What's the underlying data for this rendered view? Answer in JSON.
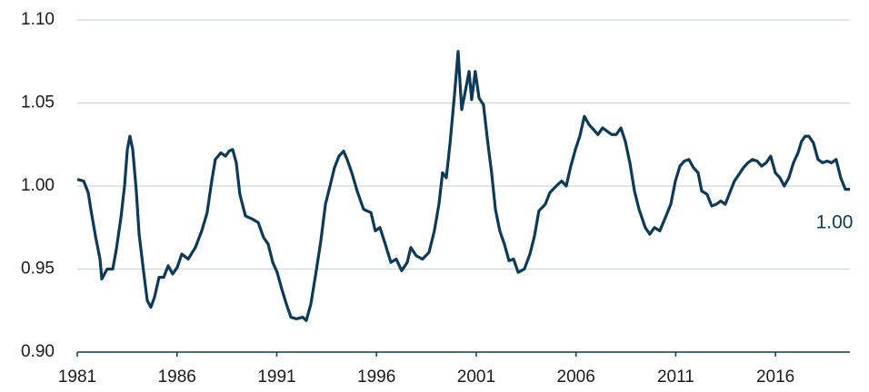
{
  "chart_data": {
    "type": "line",
    "x": [
      1981.0,
      1981.32,
      1981.55,
      1981.68,
      1981.91,
      1982.14,
      1982.23,
      1982.5,
      1982.78,
      1982.96,
      1983.19,
      1983.37,
      1983.51,
      1983.64,
      1983.78,
      1983.96,
      1984.1,
      1984.33,
      1984.51,
      1984.69,
      1984.87,
      1985.1,
      1985.33,
      1985.56,
      1985.78,
      1986.01,
      1986.24,
      1986.56,
      1986.92,
      1987.24,
      1987.51,
      1987.74,
      1987.92,
      1988.2,
      1988.43,
      1988.61,
      1988.79,
      1988.97,
      1989.15,
      1989.43,
      1989.79,
      1990.07,
      1990.34,
      1990.57,
      1990.8,
      1991.02,
      1991.25,
      1991.48,
      1991.71,
      1991.98,
      1992.3,
      1992.48,
      1992.71,
      1992.98,
      1993.21,
      1993.44,
      1993.67,
      1993.89,
      1994.12,
      1994.35,
      1994.53,
      1994.76,
      1995.03,
      1995.35,
      1995.72,
      1995.94,
      1996.17,
      1996.44,
      1996.72,
      1996.99,
      1997.26,
      1997.54,
      1997.72,
      1997.99,
      1998.31,
      1998.63,
      1998.9,
      1999.13,
      1999.31,
      1999.5,
      1999.68,
      1999.91,
      2000.09,
      2000.27,
      2000.45,
      2000.64,
      2000.77,
      2000.95,
      2001.14,
      2001.36,
      2001.59,
      2001.77,
      2001.96,
      2002.18,
      2002.41,
      2002.64,
      2002.87,
      2003.1,
      2003.41,
      2003.69,
      2003.92,
      2004.14,
      2004.46,
      2004.69,
      2005.01,
      2005.28,
      2005.51,
      2005.74,
      2005.97,
      2006.19,
      2006.42,
      2006.65,
      2006.88,
      2007.1,
      2007.33,
      2007.56,
      2007.79,
      2008.02,
      2008.25,
      2008.47,
      2008.7,
      2008.93,
      2009.16,
      2009.47,
      2009.7,
      2009.93,
      2010.2,
      2010.48,
      2010.75,
      2010.98,
      2011.21,
      2011.43,
      2011.66,
      2011.89,
      2012.12,
      2012.3,
      2012.57,
      2012.8,
      2013.03,
      2013.26,
      2013.48,
      2013.71,
      2013.94,
      2014.17,
      2014.39,
      2014.62,
      2014.85,
      2015.08,
      2015.31,
      2015.53,
      2015.76,
      2015.99,
      2016.22,
      2016.44,
      2016.67,
      2016.9,
      2017.13,
      2017.31,
      2017.49,
      2017.67,
      2017.9,
      2018.13,
      2018.36,
      2018.59,
      2018.81,
      2019.04,
      2019.27,
      2019.5,
      2019.73
    ],
    "series": [
      {
        "color": "#0d3a56",
        "values": [
          1.004,
          1.003,
          0.996,
          0.986,
          0.97,
          0.956,
          0.944,
          0.95,
          0.95,
          0.962,
          0.981,
          1.0,
          1.022,
          1.03,
          1.022,
          0.997,
          0.971,
          0.948,
          0.931,
          0.927,
          0.933,
          0.945,
          0.945,
          0.952,
          0.947,
          0.951,
          0.959,
          0.956,
          0.963,
          0.973,
          0.984,
          1.003,
          1.016,
          1.02,
          1.018,
          1.021,
          1.022,
          1.014,
          0.995,
          0.982,
          0.98,
          0.978,
          0.969,
          0.965,
          0.954,
          0.948,
          0.938,
          0.929,
          0.921,
          0.92,
          0.921,
          0.919,
          0.929,
          0.949,
          0.967,
          0.989,
          1.0,
          1.011,
          1.018,
          1.021,
          1.016,
          1.008,
          0.997,
          0.986,
          0.984,
          0.973,
          0.975,
          0.965,
          0.954,
          0.956,
          0.949,
          0.954,
          0.963,
          0.958,
          0.956,
          0.96,
          0.973,
          0.989,
          1.008,
          1.005,
          1.025,
          1.055,
          1.081,
          1.046,
          1.057,
          1.069,
          1.052,
          1.069,
          1.053,
          1.049,
          1.025,
          1.008,
          0.986,
          0.973,
          0.965,
          0.955,
          0.956,
          0.948,
          0.95,
          0.959,
          0.97,
          0.985,
          0.989,
          0.996,
          1.0,
          1.003,
          1.0,
          1.012,
          1.022,
          1.03,
          1.042,
          1.037,
          1.034,
          1.031,
          1.035,
          1.033,
          1.031,
          1.031,
          1.035,
          1.027,
          1.014,
          0.997,
          0.986,
          0.975,
          0.971,
          0.975,
          0.973,
          0.981,
          0.989,
          1.003,
          1.012,
          1.015,
          1.016,
          1.011,
          1.008,
          0.997,
          0.995,
          0.988,
          0.989,
          0.991,
          0.989,
          0.996,
          1.003,
          1.007,
          1.011,
          1.014,
          1.016,
          1.015,
          1.012,
          1.014,
          1.018,
          1.008,
          1.005,
          1.0,
          1.005,
          1.014,
          1.02,
          1.027,
          1.03,
          1.03,
          1.026,
          1.016,
          1.014,
          1.015,
          1.014,
          1.016,
          1.005,
          0.998,
          0.998
        ]
      }
    ],
    "annotations": [
      "1.00"
    ],
    "xlim": [
      1981,
      2019.73
    ],
    "xticks": [
      1981,
      1986,
      1991,
      1996,
      2001,
      2006,
      2011,
      2016
    ],
    "ylim": [
      0.9,
      1.1
    ],
    "yticks": [
      {
        "value": 0.9,
        "label": "0.90"
      },
      0.95,
      {
        "value": 1.0,
        "label": "1.00"
      },
      1.05,
      {
        "value": 1.1,
        "label": "1.10"
      }
    ],
    "grid": true
  }
}
